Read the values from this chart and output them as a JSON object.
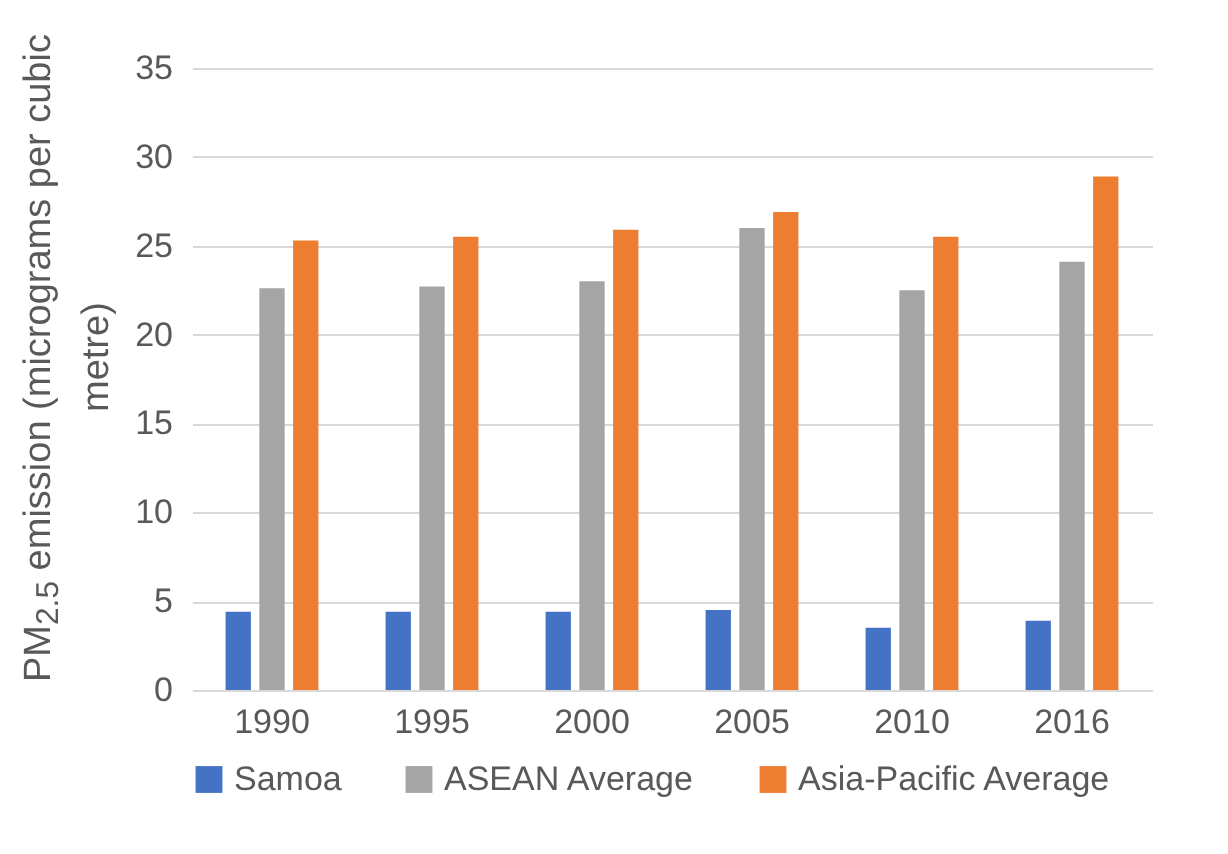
{
  "chart_data": {
    "type": "bar",
    "ylabel": "PM$_{2.5}$ emission (micrograms per cubic metre)",
    "categories": [
      "1990",
      "1995",
      "2000",
      "2005",
      "2010",
      "2016"
    ],
    "series": [
      {
        "name": "Samoa",
        "color": "#4472c4",
        "values": [
          4.4,
          4.4,
          4.4,
          4.5,
          3.5,
          3.9
        ]
      },
      {
        "name": "ASEAN Average",
        "color": "#a5a5a5",
        "values": [
          22.6,
          22.7,
          23.0,
          26.0,
          22.5,
          24.1
        ]
      },
      {
        "name": "Asia-Pacific Average",
        "color": "#ed7d31",
        "values": [
          25.3,
          25.5,
          25.9,
          26.9,
          25.5,
          28.9
        ]
      }
    ],
    "ylim": [
      0,
      35
    ],
    "yticks": [
      0,
      5,
      10,
      15,
      20,
      25,
      30,
      35
    ],
    "grid": "y",
    "legend": "bottom"
  }
}
